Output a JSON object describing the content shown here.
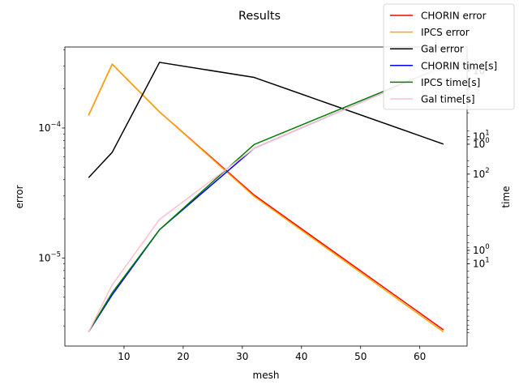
{
  "chart_data": {
    "type": "line",
    "title": "Results",
    "xlabel": "mesh",
    "ylabel_left": "error",
    "ylabel_right": "time",
    "x": [
      4,
      8,
      16,
      32,
      64
    ],
    "xlim": [
      0,
      68
    ],
    "x_ticks": [
      10,
      20,
      30,
      40,
      50,
      60
    ],
    "left_axis": {
      "scale": "log",
      "ylim": [
        2.1e-06,
        0.00042
      ],
      "major_ticks": [
        {
          "value": 0.0001,
          "label": "10",
          "exp": "−4"
        },
        {
          "value": 1e-05,
          "label": "10",
          "exp": "−5"
        }
      ]
    },
    "right_axis": {
      "scale": "log",
      "overlapping_tick_labels": [
        {
          "label": "10",
          "exp": "3",
          "frac": 0.92
        },
        {
          "label": "10",
          "exp": "1",
          "frac": 0.7
        },
        {
          "label": "10",
          "exp": "0",
          "frac": 0.675
        },
        {
          "label": "10",
          "exp": "2",
          "frac": 0.575
        },
        {
          "label": "10",
          "exp": "0",
          "frac": 0.32
        },
        {
          "label": "10",
          "exp": "1",
          "frac": 0.275
        }
      ]
    },
    "grid": false,
    "legend_position": "top-right",
    "series": [
      {
        "name": "CHORIN error",
        "color": "#ff0000",
        "axis": "left",
        "values": [
          0.000125,
          0.00031,
          0.000133,
          3.05e-05,
          2.8e-06
        ]
      },
      {
        "name": "IPCS error",
        "color": "#ffa500",
        "axis": "left",
        "values": [
          0.000125,
          0.00031,
          0.000133,
          2.98e-05,
          2.7e-06
        ]
      },
      {
        "name": "Gal error",
        "color": "#000000",
        "axis": "left",
        "values": [
          4.15e-05,
          6.5e-05,
          0.00032,
          0.000245,
          7.52e-05
        ]
      },
      {
        "name": "CHORIN time[s]",
        "color": "#0000ff",
        "axis": "right",
        "values": [
          2.7e-06,
          5.2e-06,
          1.65e-05,
          6.98e-05,
          0.000296
        ]
      },
      {
        "name": "IPCS time[s]",
        "color": "#008000",
        "axis": "right",
        "values": [
          2.7e-06,
          5.4e-06,
          1.65e-05,
          7.47e-05,
          0.000296
        ]
      },
      {
        "name": "Gal time[s]",
        "color": "#ffc0cb",
        "axis": "right",
        "values": [
          2.7e-06,
          6.2e-06,
          1.98e-05,
          6.98e-05,
          0.000296
        ]
      }
    ]
  }
}
